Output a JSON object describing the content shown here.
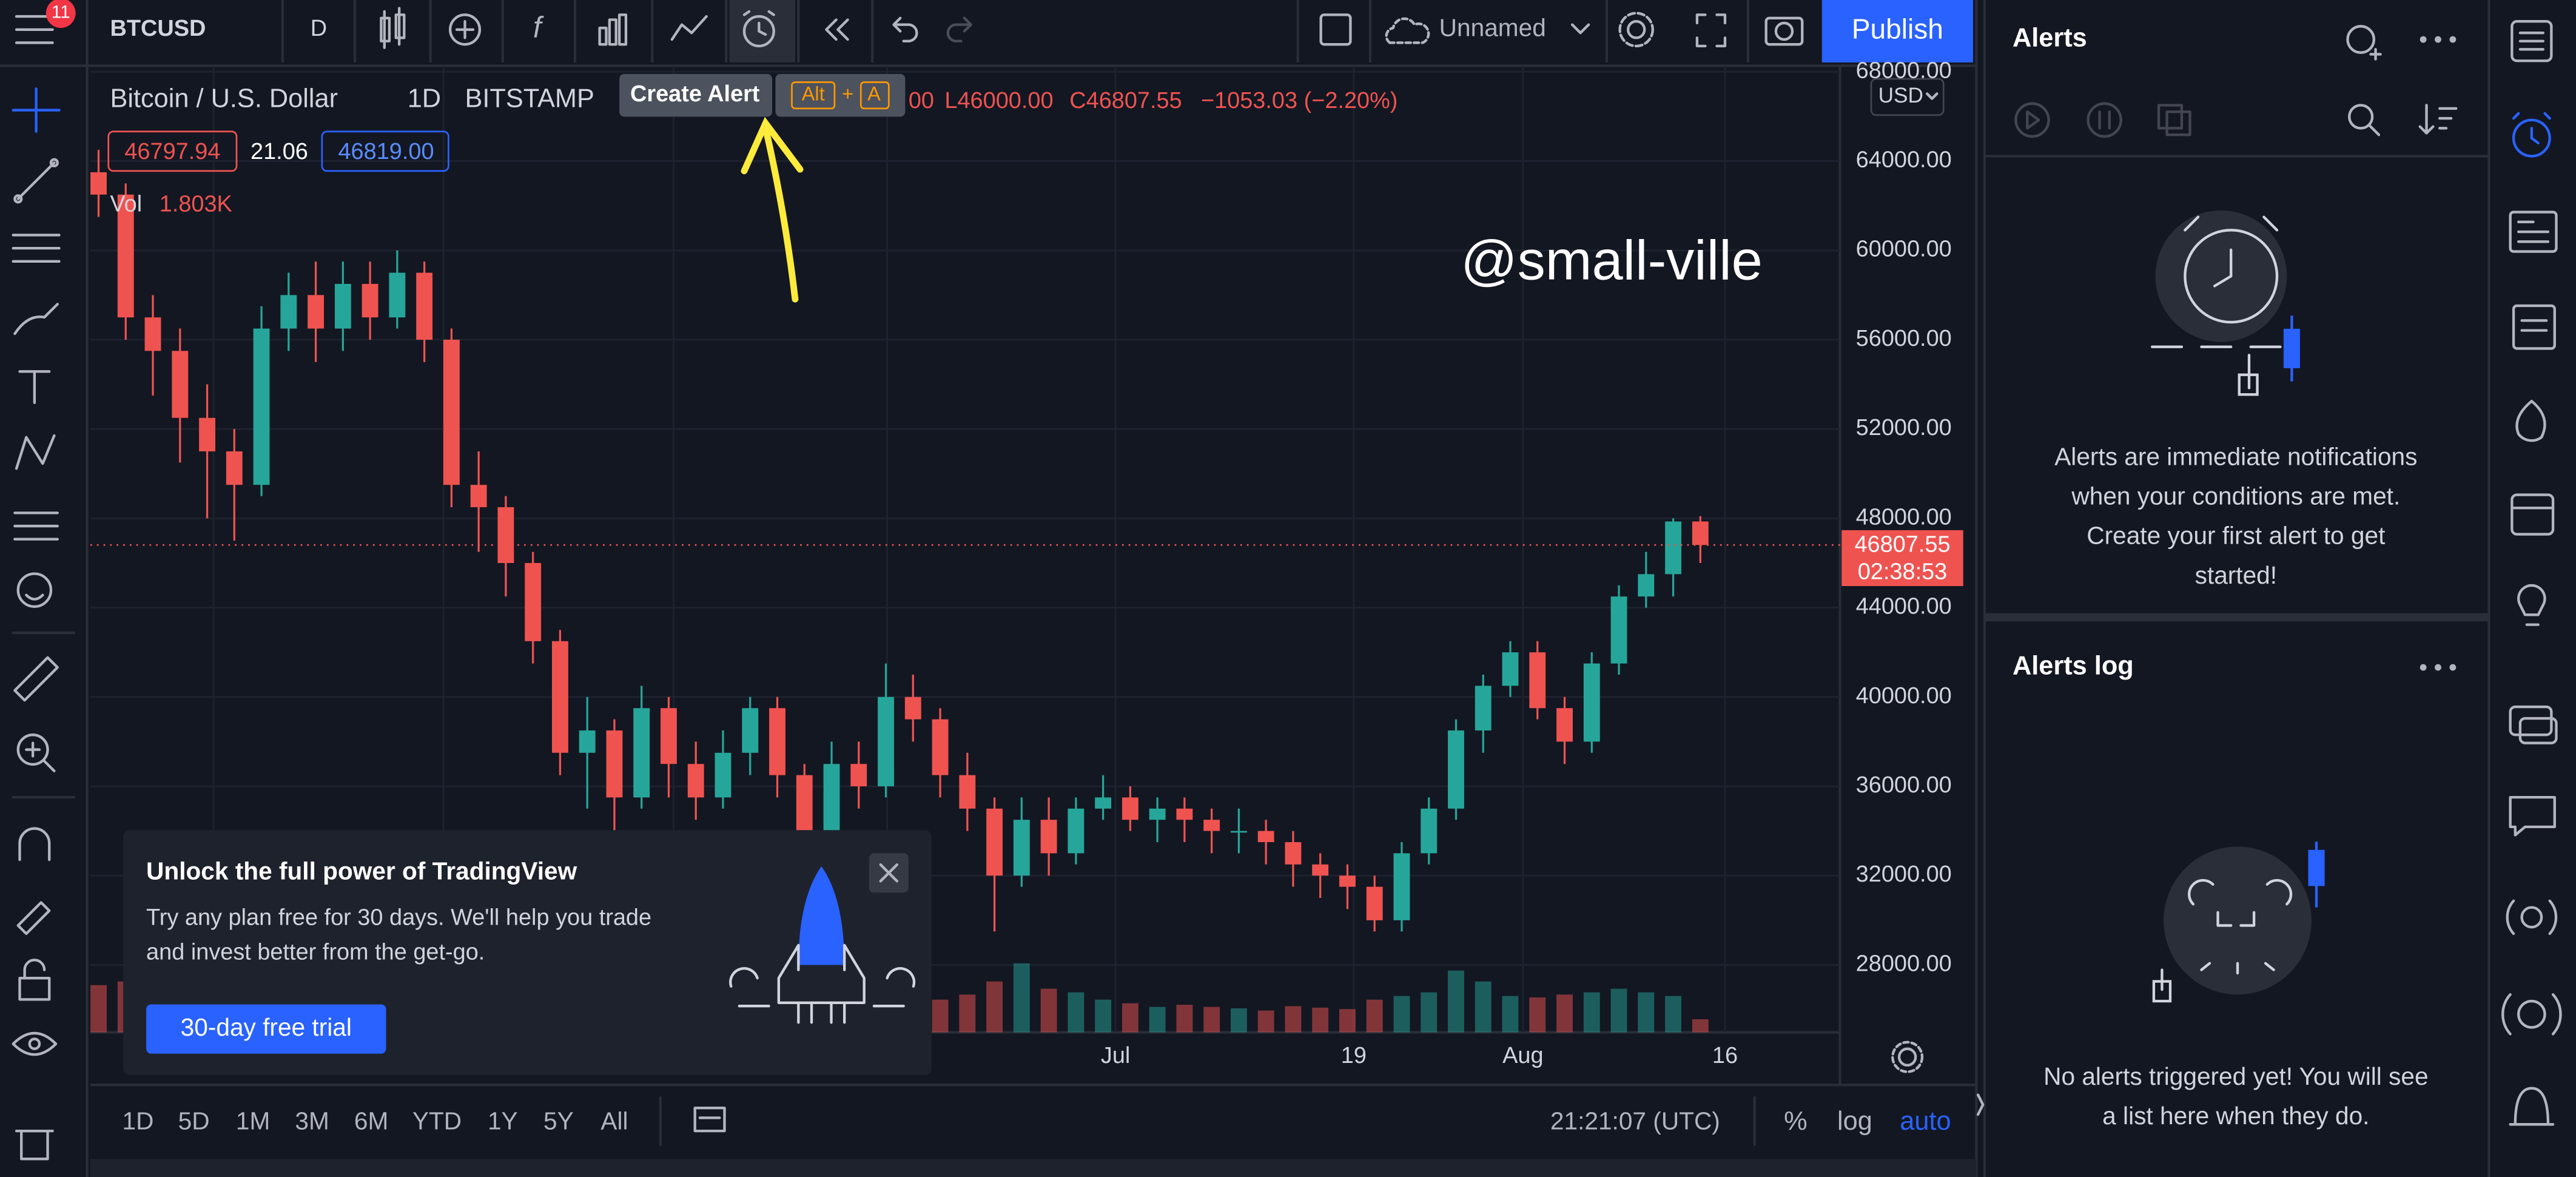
{
  "top_bar": {
    "symbol": "BTCUSD",
    "interval": "D",
    "layout_name": "Unnamed",
    "publish": "Publish",
    "notifications": "11"
  },
  "chart": {
    "type": "candlestick",
    "title": "Bitcoin / U.S. Dollar",
    "interval": "1D",
    "exchange": "BITSTAMP",
    "tooltip": {
      "label": "Create Alert",
      "keys": [
        "Alt",
        "+",
        "A"
      ]
    },
    "ohlc": {
      "open_tail": "00",
      "low": "L46000.00",
      "close": "C46807.55",
      "change": "−1053.03 (−2.20%)"
    },
    "bid": "46797.94",
    "spread": "21.06",
    "ask": "46819.00",
    "volume_label": "Vol",
    "volume_value": "1.803K",
    "currency": "USD",
    "watermark": "@small-ville",
    "ylim": [
      24980,
      68270
    ],
    "yticks": [
      {
        "value": 68000,
        "label": "68000.00"
      },
      {
        "value": 64000,
        "label": "64000.00"
      },
      {
        "value": 60000,
        "label": "60000.00"
      },
      {
        "value": 56000,
        "label": "56000.00"
      },
      {
        "value": 52000,
        "label": "52000.00"
      },
      {
        "value": 48000,
        "label": "48000.00"
      },
      {
        "value": 44000,
        "label": "44000.00"
      },
      {
        "value": 40000,
        "label": "40000.00"
      },
      {
        "value": 36000,
        "label": "36000.00"
      },
      {
        "value": 32000,
        "label": "32000.00"
      },
      {
        "value": 28000,
        "label": "28000.00"
      }
    ],
    "last_price": {
      "value": 46807.55,
      "label": "46807.55"
    },
    "countdown": "02:38:53",
    "x_labels": [
      "Jul",
      "19",
      "Aug",
      "16"
    ],
    "colors": {
      "up": "#26a69a",
      "down": "#ef5350"
    },
    "candles": [
      [
        63500,
        64500,
        61500,
        62500
      ],
      [
        62500,
        63000,
        56000,
        57000
      ],
      [
        57000,
        58000,
        53500,
        55500
      ],
      [
        55500,
        56500,
        50500,
        52500
      ],
      [
        52500,
        54000,
        48000,
        51000
      ],
      [
        51000,
        52000,
        47000,
        49500
      ],
      [
        49500,
        57500,
        49000,
        56500
      ],
      [
        56500,
        59000,
        55500,
        58000
      ],
      [
        58000,
        59500,
        55000,
        56500
      ],
      [
        56500,
        59500,
        55500,
        58500
      ],
      [
        58500,
        59500,
        56000,
        57000
      ],
      [
        57000,
        60000,
        56500,
        59000
      ],
      [
        59000,
        59500,
        55000,
        56000
      ],
      [
        56000,
        56500,
        48500,
        49500
      ],
      [
        49500,
        51000,
        46500,
        48500
      ],
      [
        48500,
        49000,
        44500,
        46000
      ],
      [
        46000,
        46500,
        41500,
        42500
      ],
      [
        42500,
        43000,
        36500,
        37500
      ],
      [
        37500,
        40000,
        35000,
        38500
      ],
      [
        38500,
        39000,
        34000,
        35500
      ],
      [
        35500,
        40500,
        35000,
        39500
      ],
      [
        39500,
        40000,
        35500,
        37000
      ],
      [
        37000,
        38000,
        34500,
        35500
      ],
      [
        35500,
        38500,
        35000,
        37500
      ],
      [
        37500,
        40000,
        36500,
        39500
      ],
      [
        39500,
        40000,
        35500,
        36500
      ],
      [
        36500,
        37000,
        32500,
        34000
      ],
      [
        34000,
        38000,
        33500,
        37000
      ],
      [
        37000,
        38000,
        35000,
        36000
      ],
      [
        36000,
        41500,
        35500,
        40000
      ],
      [
        40000,
        41000,
        38000,
        39000
      ],
      [
        39000,
        39500,
        35500,
        36500
      ],
      [
        36500,
        37500,
        34000,
        35000
      ],
      [
        35000,
        35500,
        29500,
        32000
      ],
      [
        32000,
        35500,
        31500,
        34500
      ],
      [
        34500,
        35500,
        32000,
        33000
      ],
      [
        33000,
        35500,
        32500,
        35000
      ],
      [
        35000,
        36500,
        34500,
        35500
      ],
      [
        35500,
        36000,
        34000,
        34500
      ],
      [
        34500,
        35500,
        33500,
        35000
      ],
      [
        35000,
        35500,
        33500,
        34500
      ],
      [
        34500,
        35000,
        33000,
        34000
      ],
      [
        34000,
        35000,
        33000,
        34000
      ],
      [
        34000,
        34500,
        32500,
        33500
      ],
      [
        33500,
        34000,
        31500,
        32500
      ],
      [
        32500,
        33000,
        31000,
        32000
      ],
      [
        32000,
        32500,
        30500,
        31500
      ],
      [
        31500,
        32000,
        29500,
        30000
      ],
      [
        30000,
        33500,
        29500,
        33000
      ],
      [
        33000,
        35500,
        32500,
        35000
      ],
      [
        35000,
        39000,
        34500,
        38500
      ],
      [
        38500,
        41000,
        37500,
        40500
      ],
      [
        40500,
        42500,
        40000,
        42000
      ],
      [
        42000,
        42500,
        39000,
        39500
      ],
      [
        39500,
        40000,
        37000,
        38000
      ],
      [
        38000,
        42000,
        37500,
        41500
      ],
      [
        41500,
        45000,
        41000,
        44500
      ],
      [
        44500,
        46500,
        44000,
        45500
      ],
      [
        45500,
        48000,
        44500,
        47860.58
      ],
      [
        47860.58,
        48100,
        46000,
        46807.55
      ]
    ],
    "volumes": [
      6500,
      7000,
      6000,
      5500,
      5000,
      6000,
      5500,
      4500,
      4000,
      4200,
      3800,
      4000,
      4500,
      7500,
      6000,
      5500,
      6000,
      9000,
      7000,
      6500,
      6000,
      5000,
      5500,
      4800,
      5000,
      5200,
      6500,
      5500,
      4800,
      6000,
      5000,
      4500,
      5200,
      7000,
      9500,
      6000,
      5500,
      4500,
      4000,
      3500,
      3800,
      3500,
      3300,
      3000,
      3600,
      3400,
      3200,
      4500,
      5000,
      5500,
      8500,
      7000,
      5000,
      4800,
      5200,
      5500,
      6000,
      5500,
      5000,
      1803
    ]
  },
  "bottom_bar": {
    "ranges": [
      "1D",
      "5D",
      "1M",
      "3M",
      "6M",
      "YTD",
      "1Y",
      "5Y",
      "All"
    ],
    "time": "21:21:07 (UTC)",
    "percent": "%",
    "log": "log",
    "auto": "auto"
  },
  "promo": {
    "title": "Unlock the full power of TradingView",
    "lines": [
      "Try any plan free for 30 days. We'll help you trade",
      "and invest better from the get-go."
    ],
    "button": "30-day free trial"
  },
  "alerts": {
    "title": "Alerts",
    "empty_lines": [
      "Alerts are immediate notifications",
      "when your conditions are met.",
      "Create your first alert to get",
      "started!"
    ]
  },
  "alerts_log": {
    "title": "Alerts log",
    "empty_lines": [
      "No alerts triggered yet! You will see",
      "a list here when they do."
    ]
  }
}
